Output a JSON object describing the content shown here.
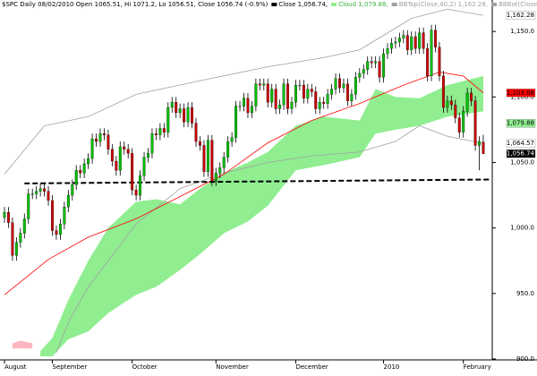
{
  "chart_data": {
    "type": "candlestick",
    "title": "$SPC Daily 08/02/2010 Open 1065.51, Hi 1071.2, Lo 1056.51, Close 1056.74 (-0.9%)",
    "legend": [
      {
        "text": "Close 1,056.74,",
        "color": "#000000"
      },
      {
        "text": "Cloud 1,079.88,",
        "color": "#90ee90"
      },
      {
        "text": "BBTop(Close,40,2) 1,162.28,",
        "color": "#a0a0a0"
      },
      {
        "text": "BBBot(Close,40,2) 1,064.57,",
        "color": "#a0a0a0"
      },
      {
        "text": "EMA(Close,",
        "color": "#ff0000"
      }
    ],
    "categories": [
      "August",
      null,
      null,
      null,
      null,
      null,
      null,
      null,
      null,
      null,
      null,
      null,
      "September",
      null,
      null,
      null,
      null,
      null,
      null,
      null,
      null,
      null,
      null,
      null,
      null,
      null,
      null,
      null,
      null,
      null,
      null,
      null,
      "October",
      null,
      null,
      null,
      null,
      null,
      null,
      null,
      null,
      null,
      null,
      null,
      null,
      null,
      null,
      null,
      null,
      null,
      null,
      null,
      null,
      "November",
      null,
      null,
      null,
      null,
      null,
      null,
      null,
      null,
      null,
      null,
      null,
      null,
      null,
      null,
      null,
      null,
      null,
      null,
      null,
      "December",
      null,
      null,
      null,
      null,
      null,
      null,
      null,
      null,
      null,
      null,
      null,
      null,
      null,
      null,
      null,
      null,
      null,
      null,
      null,
      null,
      null,
      "2010",
      null,
      null,
      null,
      null,
      null,
      null,
      null,
      null,
      null,
      null,
      null,
      null,
      null,
      null,
      null,
      null,
      null,
      null,
      null,
      "February",
      null,
      null,
      null,
      null,
      null
    ],
    "ohlc": [
      [
        1008,
        1016,
        1004,
        1012
      ],
      [
        1012,
        1016,
        1000,
        1004
      ],
      [
        1004,
        1008,
        975,
        979
      ],
      [
        979,
        993,
        975,
        989
      ],
      [
        989,
        1000,
        985,
        996
      ],
      [
        996,
        1011,
        992,
        1007
      ],
      [
        1007,
        1030,
        1003,
        1026
      ],
      [
        1026,
        1030,
        1022,
        1026
      ],
      [
        1026,
        1032,
        1022,
        1028
      ],
      [
        1028,
        1034,
        1024,
        1030
      ],
      [
        1030,
        1034,
        1024,
        1028
      ],
      [
        1028,
        1032,
        1017,
        1021
      ],
      [
        1021,
        1025,
        994,
        998
      ],
      [
        998,
        1002,
        991,
        995
      ],
      [
        995,
        1007,
        991,
        1003
      ],
      [
        1003,
        1020,
        999,
        1016
      ],
      [
        1016,
        1029,
        1012,
        1025
      ],
      [
        1025,
        1037,
        1021,
        1033
      ],
      [
        1033,
        1048,
        1029,
        1044
      ],
      [
        1044,
        1048,
        1038,
        1042
      ],
      [
        1042,
        1053,
        1038,
        1049
      ],
      [
        1049,
        1057,
        1045,
        1053
      ],
      [
        1053,
        1072,
        1049,
        1068
      ],
      [
        1068,
        1072,
        1062,
        1066
      ],
      [
        1066,
        1076,
        1062,
        1072
      ],
      [
        1072,
        1076,
        1067,
        1071
      ],
      [
        1071,
        1075,
        1056,
        1060
      ],
      [
        1060,
        1064,
        1047,
        1051
      ],
      [
        1051,
        1055,
        1040,
        1044
      ],
      [
        1044,
        1066,
        1040,
        1062
      ],
      [
        1062,
        1066,
        1056,
        1060
      ],
      [
        1060,
        1064,
        1053,
        1057
      ],
      [
        1057,
        1061,
        1025,
        1029
      ],
      [
        1029,
        1033,
        1021,
        1025
      ],
      [
        1025,
        1044,
        1021,
        1040
      ],
      [
        1040,
        1058,
        1036,
        1054
      ],
      [
        1054,
        1061,
        1050,
        1057
      ],
      [
        1057,
        1076,
        1053,
        1072
      ],
      [
        1072,
        1076,
        1067,
        1071
      ],
      [
        1071,
        1080,
        1067,
        1076
      ],
      [
        1076,
        1080,
        1069,
        1073
      ],
      [
        1073,
        1096,
        1069,
        1092
      ],
      [
        1092,
        1100,
        1088,
        1096
      ],
      [
        1096,
        1100,
        1084,
        1088
      ],
      [
        1088,
        1095,
        1084,
        1091
      ],
      [
        1091,
        1095,
        1077,
        1081
      ],
      [
        1081,
        1096,
        1077,
        1092
      ],
      [
        1092,
        1096,
        1076,
        1080
      ],
      [
        1080,
        1084,
        1062,
        1066
      ],
      [
        1066,
        1070,
        1059,
        1063
      ],
      [
        1063,
        1067,
        1039,
        1043
      ],
      [
        1043,
        1071,
        1039,
        1067
      ],
      [
        1067,
        1071,
        1032,
        1036
      ],
      [
        1036,
        1046,
        1032,
        1042
      ],
      [
        1042,
        1050,
        1038,
        1046
      ],
      [
        1046,
        1058,
        1042,
        1054
      ],
      [
        1054,
        1070,
        1050,
        1066
      ],
      [
        1066,
        1073,
        1062,
        1069
      ],
      [
        1069,
        1097,
        1065,
        1093
      ],
      [
        1093,
        1097,
        1089,
        1093
      ],
      [
        1093,
        1103,
        1089,
        1099
      ],
      [
        1099,
        1103,
        1084,
        1088
      ],
      [
        1088,
        1097,
        1084,
        1093
      ],
      [
        1093,
        1114,
        1089,
        1110
      ],
      [
        1110,
        1114,
        1105,
        1109
      ],
      [
        1109,
        1114,
        1105,
        1110
      ],
      [
        1110,
        1114,
        1092,
        1096
      ],
      [
        1096,
        1110,
        1092,
        1106
      ],
      [
        1106,
        1110,
        1087,
        1091
      ],
      [
        1091,
        1098,
        1087,
        1094
      ],
      [
        1094,
        1114,
        1090,
        1110
      ],
      [
        1110,
        1114,
        1087,
        1091
      ],
      [
        1091,
        1100,
        1087,
        1096
      ],
      [
        1096,
        1113,
        1092,
        1109
      ],
      [
        1109,
        1113,
        1105,
        1109
      ],
      [
        1109,
        1113,
        1095,
        1099
      ],
      [
        1099,
        1110,
        1095,
        1106
      ],
      [
        1106,
        1110,
        1100,
        1104
      ],
      [
        1104,
        1108,
        1087,
        1091
      ],
      [
        1091,
        1100,
        1087,
        1096
      ],
      [
        1096,
        1100,
        1091,
        1095
      ],
      [
        1095,
        1106,
        1091,
        1102
      ],
      [
        1102,
        1110,
        1098,
        1106
      ],
      [
        1106,
        1118,
        1102,
        1114
      ],
      [
        1114,
        1118,
        1103,
        1107
      ],
      [
        1107,
        1114,
        1103,
        1110
      ],
      [
        1110,
        1114,
        1093,
        1097
      ],
      [
        1097,
        1106,
        1093,
        1102
      ],
      [
        1102,
        1119,
        1098,
        1115
      ],
      [
        1115,
        1122,
        1111,
        1118
      ],
      [
        1118,
        1125,
        1114,
        1121
      ],
      [
        1121,
        1131,
        1117,
        1127
      ],
      [
        1127,
        1131,
        1122,
        1126
      ],
      [
        1126,
        1131,
        1122,
        1127
      ],
      [
        1127,
        1131,
        1111,
        1115
      ],
      [
        1115,
        1137,
        1111,
        1133
      ],
      [
        1133,
        1141,
        1129,
        1137
      ],
      [
        1137,
        1145,
        1133,
        1141
      ],
      [
        1141,
        1146,
        1137,
        1142
      ],
      [
        1142,
        1149,
        1138,
        1145
      ],
      [
        1145,
        1151,
        1141,
        1147
      ],
      [
        1147,
        1151,
        1132,
        1136
      ],
      [
        1136,
        1150,
        1132,
        1146
      ],
      [
        1146,
        1150,
        1133,
        1137
      ],
      [
        1137,
        1153,
        1133,
        1149
      ],
      [
        1149,
        1153,
        1133,
        1137
      ],
      [
        1137,
        1141,
        1112,
        1116
      ],
      [
        1116,
        1155,
        1112,
        1151
      ],
      [
        1151,
        1155,
        1134,
        1138
      ],
      [
        1138,
        1142,
        1112,
        1116
      ],
      [
        1116,
        1120,
        1088,
        1092
      ],
      [
        1092,
        1101,
        1088,
        1097
      ],
      [
        1097,
        1101,
        1090,
        1094
      ],
      [
        1094,
        1098,
        1080,
        1084
      ],
      [
        1084,
        1088,
        1069,
        1073
      ],
      [
        1073,
        1093,
        1069,
        1089
      ],
      [
        1089,
        1107,
        1085,
        1103
      ],
      [
        1103,
        1107,
        1093,
        1097
      ],
      [
        1097,
        1101,
        1059,
        1063
      ],
      [
        1063,
        1070,
        1044,
        1066
      ],
      [
        1065.51,
        1071.2,
        1056.51,
        1056.74
      ]
    ],
    "up_color": "#00c000",
    "down_color": "#cc0000",
    "wick_color": "#000000",
    "ylim": [
      900,
      1174
    ],
    "yticks": [
      {
        "value": 900,
        "label": "900.0"
      },
      {
        "value": 950,
        "label": "950.0"
      },
      {
        "value": 1000,
        "label": "1,000.0"
      },
      {
        "value": 1050,
        "label": "1,050.0"
      },
      {
        "value": 1100,
        "label": "1,100.0"
      },
      {
        "value": 1150,
        "label": "1,150.0"
      }
    ],
    "overlays": [
      {
        "type": "area",
        "color": "#ffb6c1",
        "x": [
          2,
          4,
          7
        ],
        "upper": [
          912,
          914,
          912
        ],
        "lower": [
          908,
          908,
          908
        ]
      },
      {
        "type": "area",
        "color": "#90ee90",
        "x": [
          9,
          12,
          16,
          21,
          26,
          33,
          38,
          44,
          49,
          55,
          61,
          66,
          73,
          80,
          89,
          93,
          98,
          104,
          111,
          120
        ],
        "upper": [
          906,
          916,
          945,
          975,
          1000,
          1020,
          1022,
          1018,
          1030,
          1042,
          1050,
          1058,
          1078,
          1085,
          1082,
          1106,
          1100,
          1099,
          1109,
          1116
        ],
        "lower": [
          902,
          902,
          915,
          921,
          935,
          949,
          955,
          968,
          980,
          996,
          1005,
          1017,
          1044,
          1048,
          1054,
          1072,
          1075,
          1078,
          1085,
          1089
        ]
      },
      {
        "type": "line",
        "color": "#a0a0a0",
        "x": [
          0,
          10,
          21,
          33,
          50,
          66,
          80,
          89,
          95,
          102,
          111,
          120
        ],
        "values": [
          1041,
          1078,
          1085,
          1102,
          1113,
          1123,
          1130,
          1136,
          1147,
          1160,
          1167,
          1162.28
        ]
      },
      {
        "type": "line",
        "color": "#a0a0a0",
        "x": [
          13,
          16,
          21,
          33,
          44,
          55,
          66,
          77,
          89,
          98,
          104,
          111,
          120
        ],
        "values": [
          905,
          928,
          955,
          1003,
          1030,
          1042,
          1050,
          1055,
          1058,
          1066,
          1078,
          1070,
          1064.57
        ]
      },
      {
        "type": "line",
        "color": "#ff0000",
        "x": [
          0,
          11,
          21,
          33,
          44,
          55,
          66,
          77,
          89,
          100,
          109,
          115,
          120
        ],
        "values": [
          949,
          976,
          993,
          1007,
          1024,
          1041,
          1065,
          1082,
          1095,
          1109,
          1119,
          1116,
          1103.08
        ]
      }
    ],
    "trendline": {
      "x": [
        5,
        122
      ],
      "values": [
        1034,
        1037
      ],
      "color": "#000000"
    },
    "value_tags": [
      {
        "value": 1162.28,
        "label": "1,162.28",
        "color": "#ffffff",
        "text_color": "#000000"
      },
      {
        "value": 1103.08,
        "label": "1,103.08",
        "color": "#ff0000",
        "text_color": "#000000"
      },
      {
        "value": 1079.88,
        "label": "1,079.88",
        "color": "#90ee90",
        "text_color": "#000000"
      },
      {
        "value": 1064.57,
        "label": "1,064.57",
        "color": "#ffffff",
        "text_color": "#000000"
      },
      {
        "value": 1056.74,
        "label": "1,056.74",
        "color": "#000000",
        "text_color": "#ffffff"
      }
    ]
  }
}
